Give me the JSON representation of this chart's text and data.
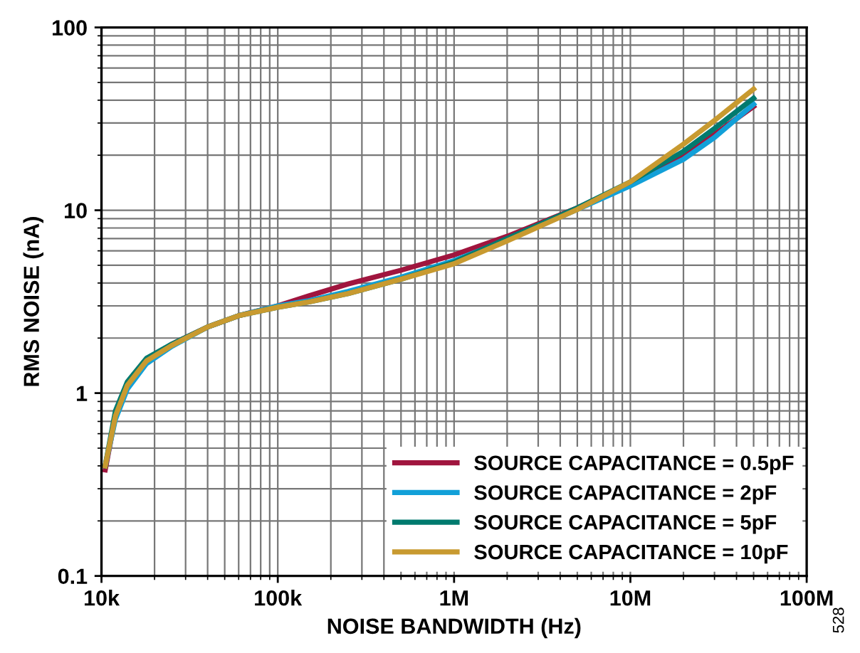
{
  "chart_data": {
    "type": "line",
    "xlabel": "NOISE BANDWIDTH (Hz)",
    "ylabel": "RMS NOISE (nA)",
    "log": "xy",
    "grid": true,
    "legend": "bottom right",
    "line_style": "solid",
    "marker": "none",
    "x": [
      10500,
      12000,
      14000,
      18000,
      25000,
      40000,
      60000,
      100000,
      150000,
      250000,
      500000,
      1000000,
      2000000,
      5000000,
      10000000,
      20000000,
      30000000,
      50000000
    ],
    "xlim": [
      10000,
      100000000
    ],
    "ylim": [
      0.1,
      100
    ],
    "xticks": [
      {
        "value": 10000,
        "label": "10k"
      },
      {
        "value": 100000,
        "label": "100k"
      },
      {
        "value": 1000000,
        "label": "1M"
      },
      {
        "value": 10000000,
        "label": "10M"
      },
      {
        "value": 100000000,
        "label": "100M"
      }
    ],
    "yticks": [
      0.1,
      1,
      10,
      100
    ],
    "series": [
      {
        "name": "SOURCE CAPACITANCE = 0.5pF",
        "color": "#a0153e",
        "values": [
          0.38,
          0.75,
          1.1,
          1.5,
          1.85,
          2.3,
          2.65,
          3.0,
          3.4,
          3.95,
          4.7,
          5.7,
          7.2,
          10.3,
          14,
          20,
          26,
          37
        ]
      },
      {
        "name": "SOURCE CAPACITANCE = 2pF",
        "color": "#12a0d8",
        "values": [
          0.4,
          0.72,
          1.05,
          1.45,
          1.8,
          2.3,
          2.65,
          3.0,
          3.2,
          3.6,
          4.3,
          5.3,
          6.9,
          10.1,
          13.6,
          19,
          25,
          38
        ]
      },
      {
        "name": "SOURCE CAPACITANCE = 5pF",
        "color": "#007a6e",
        "values": [
          0.4,
          0.8,
          1.15,
          1.55,
          1.85,
          2.3,
          2.65,
          2.95,
          3.15,
          3.5,
          4.2,
          5.2,
          7.0,
          10.3,
          14.3,
          21,
          28,
          41
        ]
      },
      {
        "name": "SOURCE CAPACITANCE = 10pF",
        "color": "#c89a30",
        "values": [
          0.4,
          0.75,
          1.1,
          1.5,
          1.82,
          2.3,
          2.65,
          2.95,
          3.15,
          3.5,
          4.2,
          5.1,
          6.8,
          10.1,
          14.3,
          23,
          31,
          46
        ]
      }
    ],
    "annotations": [
      "528"
    ]
  }
}
